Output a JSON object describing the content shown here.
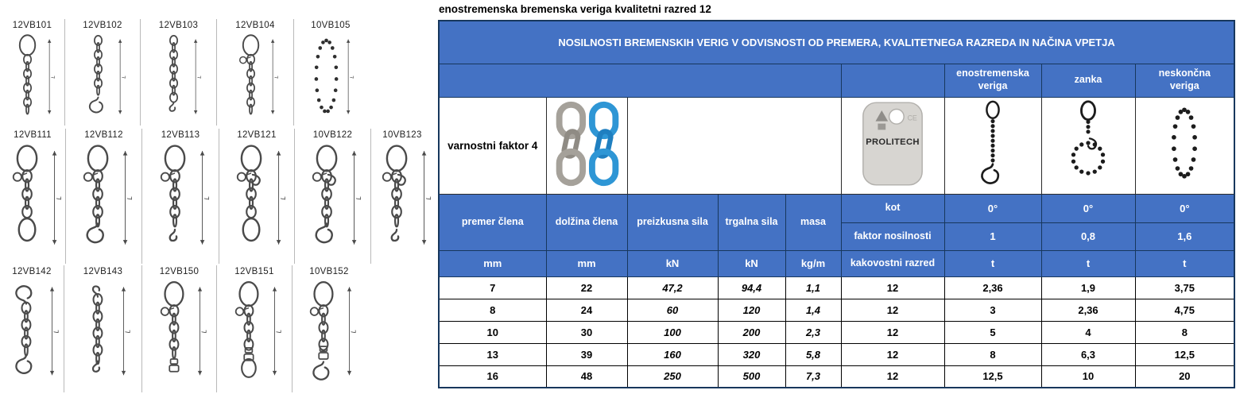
{
  "colors": {
    "header_blue": "#4472C4",
    "border_navy": "#17375d",
    "chain_gray": "#a5a19a",
    "chain_gray_dark": "#8f8b84",
    "chain_blue": "#2e96d5",
    "chain_blue_dark": "#1f7fc0",
    "tag_gray": "#d7d5d1",
    "diagram_line": "#4a4a4a"
  },
  "title": "enostremenska bremenska veriga kvalitetni razred 12",
  "table": {
    "main_header": "NOSILNOSTI BREMENSKIH VERIG V ODVISNOSTI OD PREMERA, KVALITETNEGA RAZREDA IN NAČINA VPETJA",
    "sling_types": [
      "enostremenska\nveriga",
      "zanka",
      "neskončna\nveriga"
    ],
    "sling_type_icons": [
      "single-leg-chain-sling-icon",
      "choker-loop-chain-icon",
      "endless-chain-icon"
    ],
    "safety_factor_label": "varnostni faktor 4",
    "chain_sample_icon": "gray-and-blue-chain-links-icon",
    "tag": {
      "brand": "PROLITECH",
      "ce": "CE",
      "icon": "id-tag-icon"
    },
    "angle_row": {
      "label": "kot",
      "values": [
        "0°",
        "0°",
        "0°"
      ]
    },
    "factor_row": {
      "label": "faktor nosilnosti",
      "values": [
        "1",
        "0,8",
        "1,6"
      ]
    },
    "grade_row": {
      "label": "kakovostni razred",
      "values": [
        "t",
        "t",
        "t"
      ]
    },
    "columns": [
      "premer člena",
      "dolžina člena",
      "preizkusna sila",
      "trgalna sila",
      "masa"
    ],
    "units": [
      "mm",
      "mm",
      "kN",
      "kN",
      "kg/m"
    ],
    "data": [
      [
        "7",
        "22",
        "47,2",
        "94,4",
        "1,1",
        "12",
        "2,36",
        "1,9",
        "3,75"
      ],
      [
        "8",
        "24",
        "60",
        "120",
        "1,4",
        "12",
        "3",
        "2,36",
        "4,75"
      ],
      [
        "10",
        "30",
        "100",
        "200",
        "2,3",
        "12",
        "5",
        "4",
        "8"
      ],
      [
        "13",
        "39",
        "160",
        "320",
        "5,8",
        "12",
        "8",
        "6,3",
        "12,5"
      ],
      [
        "16",
        "48",
        "250",
        "500",
        "7,3",
        "12",
        "12,5",
        "10",
        "20"
      ]
    ]
  },
  "left_panel": {
    "dimension_label": "L",
    "rows": [
      [
        {
          "code": "12VB101",
          "icon": "sling-oval-link-chain-icon",
          "top": "oval",
          "mid": "none",
          "bottom": "none"
        },
        {
          "code": "12VB102",
          "icon": "sling-chain-hook-icon",
          "top": "none",
          "mid": "none",
          "bottom": "hook"
        },
        {
          "code": "12VB103",
          "icon": "sling-chain-grab-hook-icon",
          "top": "none",
          "mid": "none",
          "bottom": "chook"
        },
        {
          "code": "12VB104",
          "icon": "sling-oval-link-ball-chain-icon",
          "top": "oval",
          "mid": "ball",
          "bottom": "none"
        },
        {
          "code": "10VB105",
          "icon": "endless-chain-loop-icon",
          "endless": true
        }
      ],
      [
        {
          "code": "12VB111",
          "icon": "sling-oval-chain-oval-icon",
          "top": "oval",
          "mid": "ball",
          "bottom": "oval"
        },
        {
          "code": "12VB112",
          "icon": "sling-oval-chain-hook-icon",
          "top": "oval",
          "mid": "ball",
          "bottom": "hook"
        },
        {
          "code": "12VB113",
          "icon": "sling-oval-chain-grab-hook-icon",
          "top": "oval",
          "mid": "ball",
          "bottom": "chook"
        },
        {
          "code": "12VB121",
          "icon": "sling-oval-shortener-chain-oval-icon",
          "top": "oval",
          "mid": "claw",
          "bottom": "oval"
        },
        {
          "code": "10VB122",
          "icon": "sling-oval-shortener-chain-hook-icon",
          "top": "oval",
          "mid": "claw",
          "bottom": "hook"
        },
        {
          "code": "10VB123",
          "icon": "sling-oval-shortener-chain-grab-icon",
          "top": "oval",
          "mid": "claw",
          "bottom": "chook"
        }
      ],
      [
        {
          "code": "12VB142",
          "icon": "sling-hook-chain-hook-icon",
          "top": "hook",
          "mid": "none",
          "bottom": "hook"
        },
        {
          "code": "12VB143",
          "icon": "sling-grab-chain-grab-icon",
          "top": "chook",
          "mid": "none",
          "bottom": "chook"
        },
        {
          "code": "12VB150",
          "icon": "sling-oval-chain-swivel-icon",
          "top": "oval",
          "mid": "ball",
          "bottom": "swivel"
        },
        {
          "code": "12VB151",
          "icon": "sling-oval-chain-swivel-oval-icon",
          "top": "oval",
          "mid": "ball",
          "bottom": "swivel-oval"
        },
        {
          "code": "10VB152",
          "icon": "sling-oval-chain-swivel-hook-icon",
          "top": "oval",
          "mid": "ball",
          "bottom": "swivel-hook"
        }
      ]
    ]
  }
}
